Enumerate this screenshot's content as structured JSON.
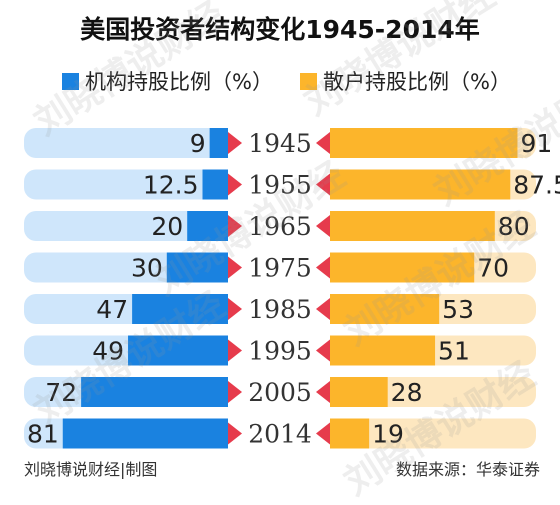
{
  "title": "美国投资者结构变化1945-2014年",
  "legend": {
    "institution": "机构持股比例（%）",
    "retail": "散户持股比例（%）"
  },
  "colors": {
    "institution_bar": "#1a82e0",
    "institution_bg": "#cfe6fb",
    "retail_bar": "#fcb52b",
    "retail_bg": "#fde7c0",
    "marker": "#e63b4c"
  },
  "chart_data": {
    "type": "bar",
    "layout": "butterfly",
    "categories": [
      "1945",
      "1955",
      "1965",
      "1975",
      "1985",
      "1995",
      "2005",
      "2014"
    ],
    "series": [
      {
        "name": "机构持股比例（%）",
        "values": [
          9,
          12.5,
          20,
          30,
          47,
          49,
          72,
          81
        ]
      },
      {
        "name": "散户持股比例（%）",
        "values": [
          91,
          87.5,
          80,
          70,
          53,
          51,
          28,
          19
        ]
      }
    ],
    "xlim": [
      0,
      100
    ]
  },
  "footer": {
    "credit": "刘晓博说财经|制图",
    "source": "数据来源：华泰证券"
  },
  "watermark": "刘晓博说财经"
}
